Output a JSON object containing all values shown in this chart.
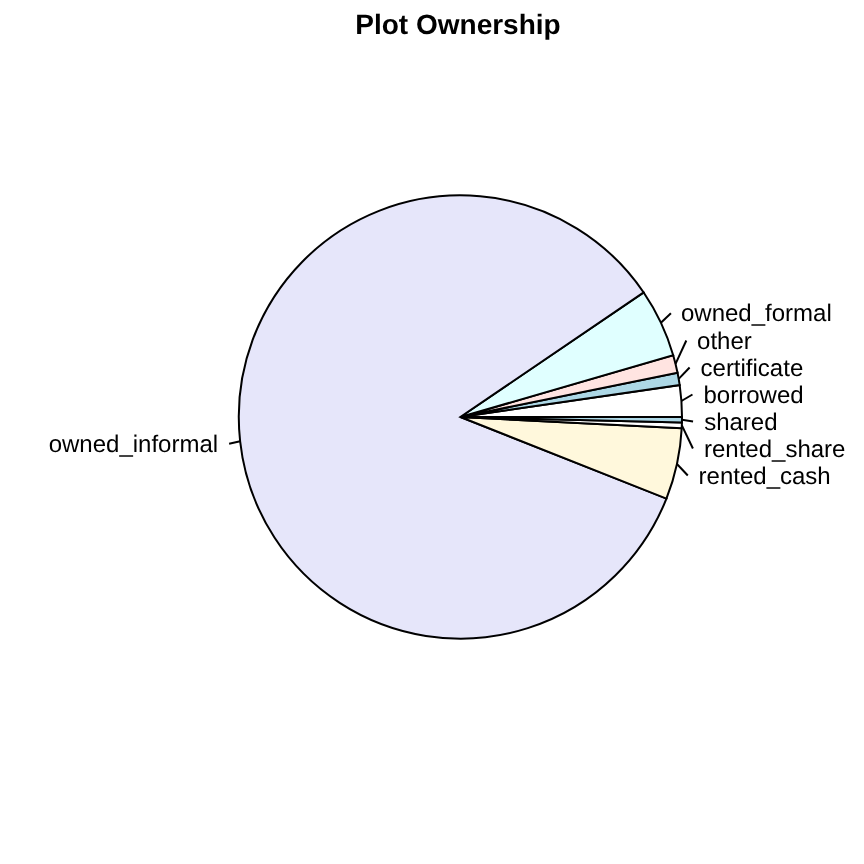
{
  "chart_data": {
    "type": "pie",
    "title": "Plot Ownership",
    "categories": [
      "borrowed",
      "certificate",
      "other",
      "owned_formal",
      "owned_informal",
      "rented_cash",
      "rented_share",
      "shared"
    ],
    "values": [
      2.3,
      0.9,
      1.3,
      5.0,
      84.5,
      5.2,
      0.4,
      0.4
    ],
    "colors": [
      "#ffffff",
      "#add8e6",
      "#ffe4e1",
      "#e0ffff",
      "#e6e6fa",
      "#fff8dc",
      "#ffffff",
      "#add8e6"
    ]
  }
}
